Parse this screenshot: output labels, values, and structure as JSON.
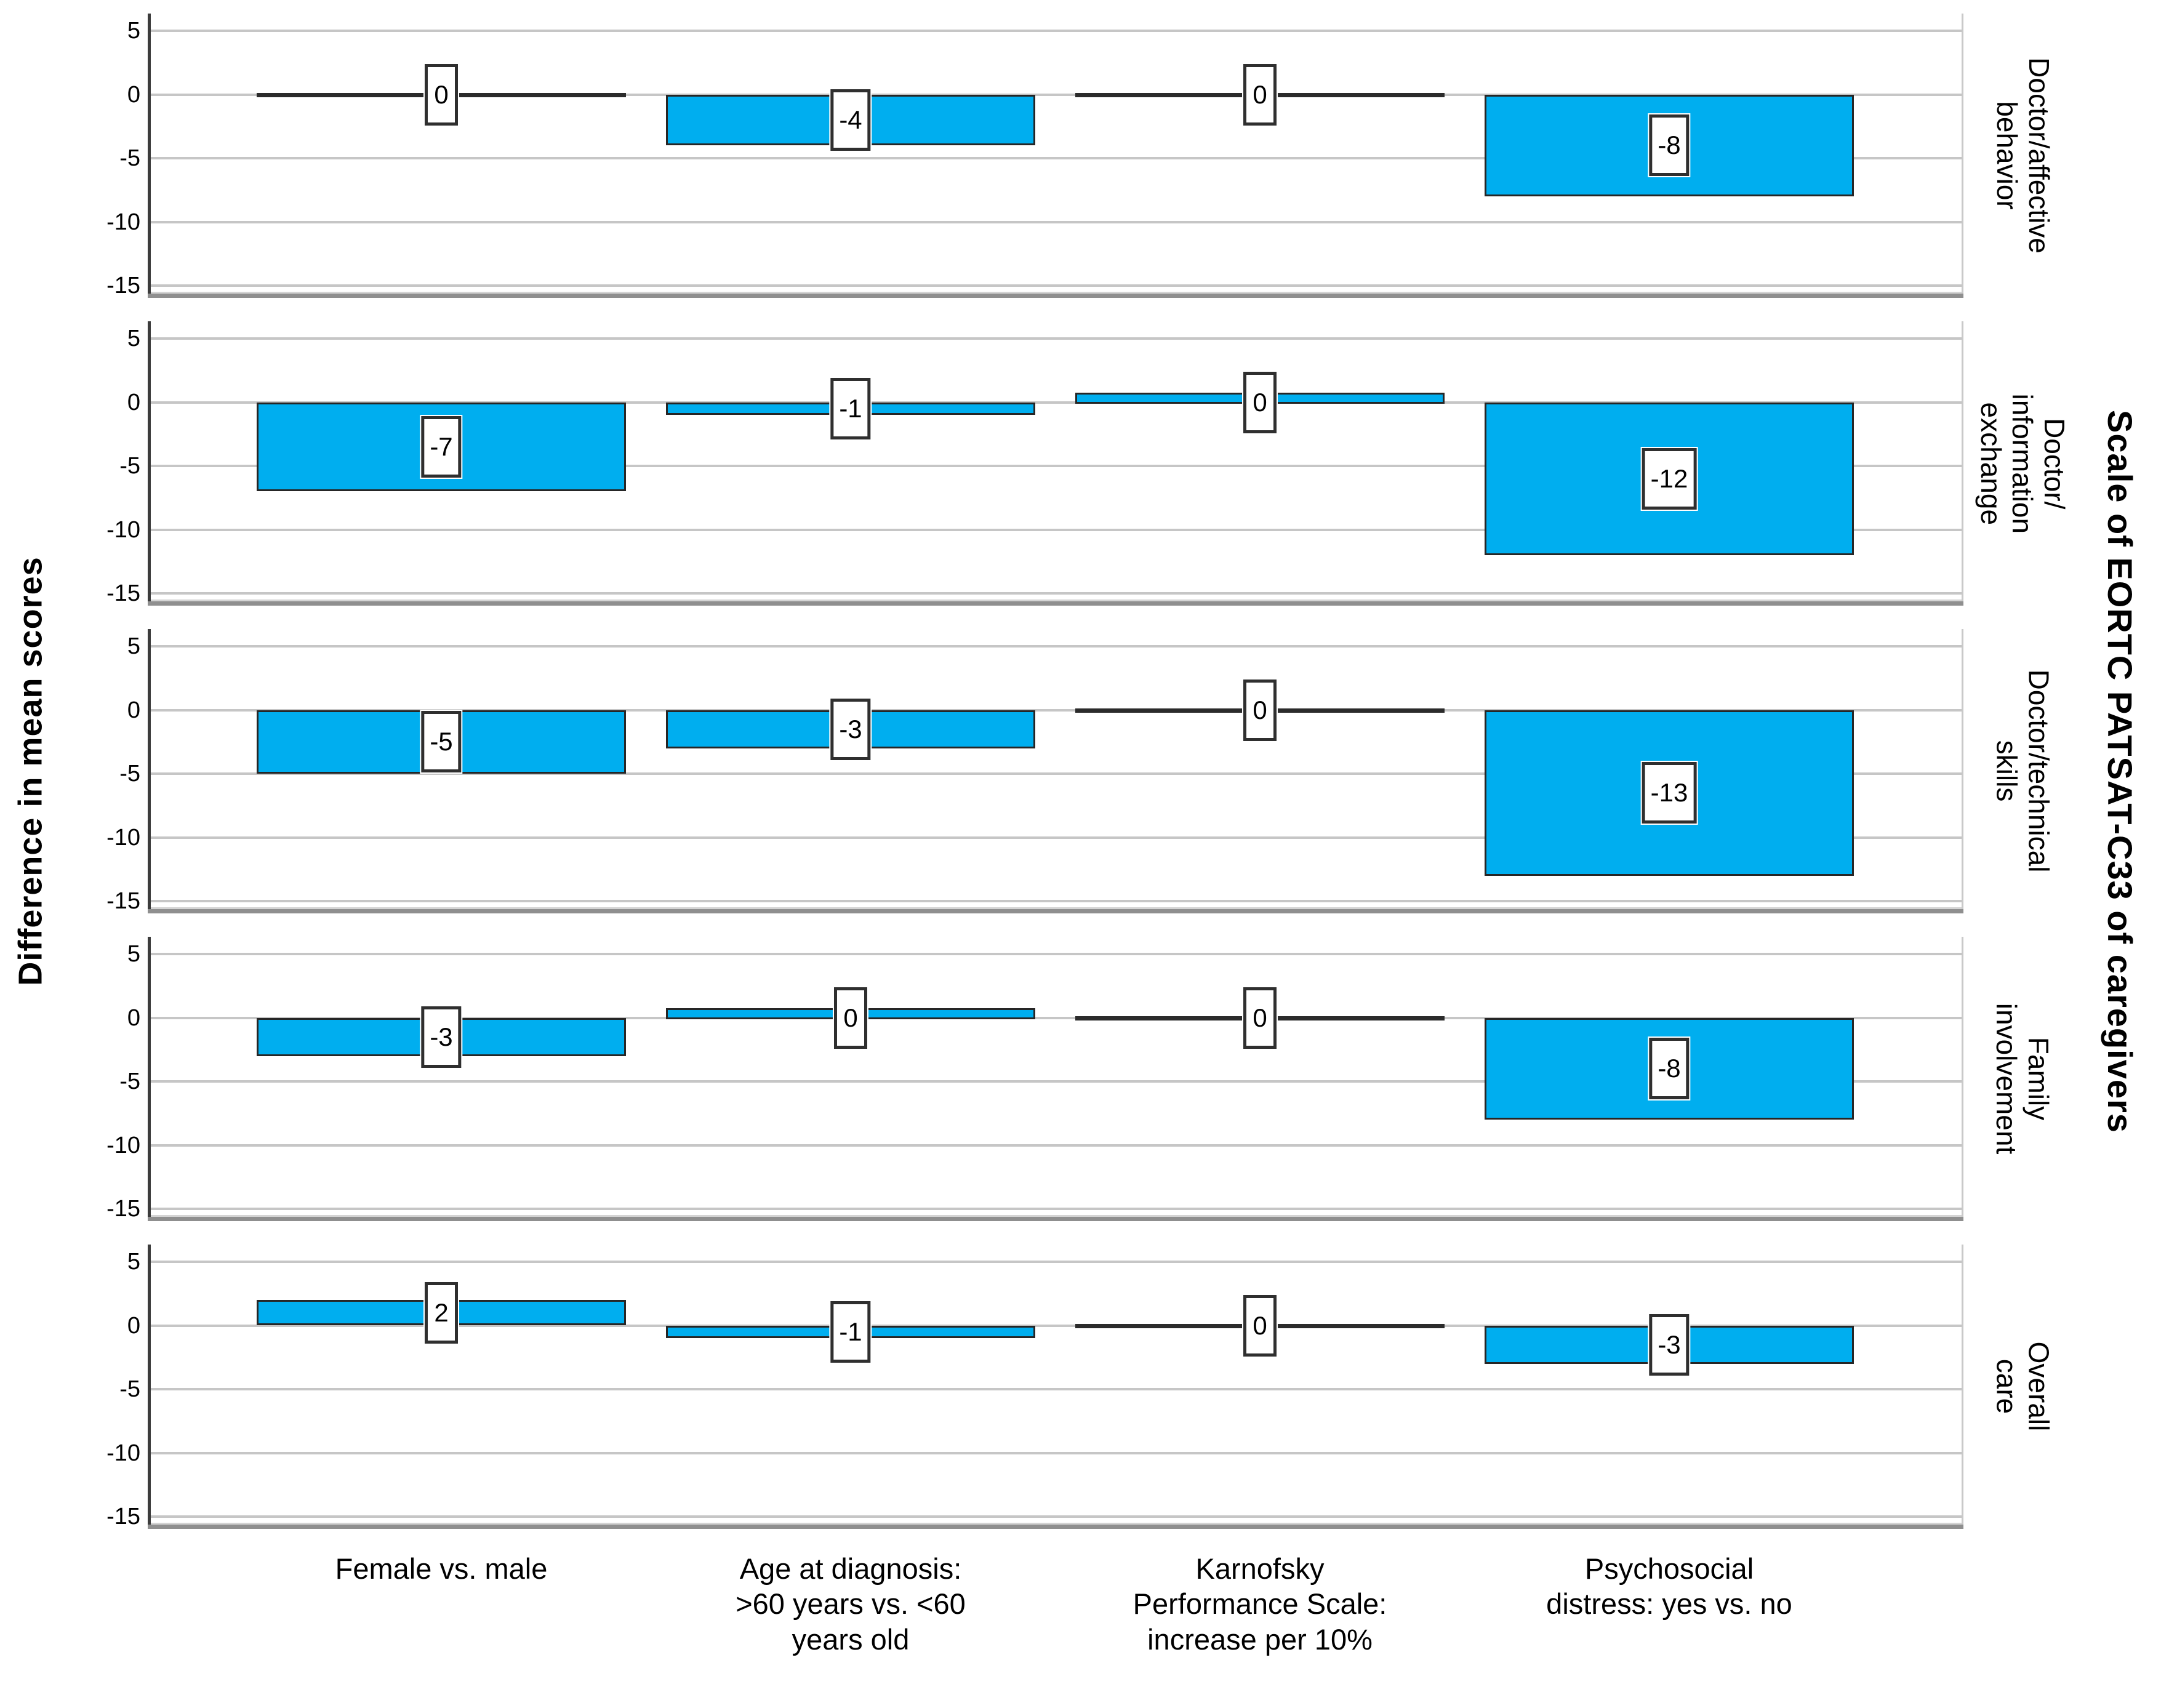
{
  "chart_data": {
    "type": "bar",
    "title_right": "Scale of EORTC PATSAT-C33 of caregivers",
    "ylabel": "Difference in mean scores",
    "bar_color": "#00AEEF",
    "grid": true,
    "y_axis": {
      "ticks": [
        {
          "v": 5,
          "label": "5"
        },
        {
          "v": 0,
          "label": "0"
        },
        {
          "v": -5,
          "label": "-5"
        },
        {
          "v": -10,
          "label": "-10"
        },
        {
          "v": -15,
          "label": "-15"
        }
      ],
      "ylim": [
        6.3,
        -16.3
      ]
    },
    "categories": [
      {
        "label": "Female vs. male",
        "lines": [
          "Female vs. male"
        ]
      },
      {
        "label": "Age at diagnosis: >60 years vs. <60 years old",
        "lines": [
          "Age at diagnosis:",
          ">60 years vs. <60",
          "years old"
        ]
      },
      {
        "label": "Karnofsky Performance Scale: increase per 10%",
        "lines": [
          "Karnofsky",
          "Performance Scale:",
          "increase per 10%"
        ]
      },
      {
        "label": "Psychosocial distress: yes vs. no",
        "lines": [
          "Psychosocial",
          "distress: yes vs. no"
        ]
      }
    ],
    "panels": [
      {
        "scale": "Doctor/affective behavior",
        "label_lines": [
          "Doctor/affective",
          "behavior"
        ],
        "bars": [
          {
            "value": 0,
            "label": "0",
            "zero_style": "line"
          },
          {
            "value": -4,
            "label": "-4"
          },
          {
            "value": 0,
            "label": "0",
            "zero_style": "line"
          },
          {
            "value": -8,
            "label": "-8"
          }
        ]
      },
      {
        "scale": "Doctor/information exchange",
        "label_lines": [
          "Doctor/",
          "information",
          "exchange"
        ],
        "bars": [
          {
            "value": -7,
            "label": "-7"
          },
          {
            "value": -1,
            "label": "-1"
          },
          {
            "value": 0,
            "label": "0",
            "zero_style": "thin-bar"
          },
          {
            "value": -12,
            "label": "-12"
          }
        ]
      },
      {
        "scale": "Doctor/technical skills",
        "label_lines": [
          "Doctor/technical",
          "skills"
        ],
        "bars": [
          {
            "value": -5,
            "label": "-5"
          },
          {
            "value": -3,
            "label": "-3"
          },
          {
            "value": 0,
            "label": "0",
            "zero_style": "line"
          },
          {
            "value": -13,
            "label": "-13"
          }
        ]
      },
      {
        "scale": "Family involvement",
        "label_lines": [
          "Family",
          "involvement"
        ],
        "bars": [
          {
            "value": -3,
            "label": "-3"
          },
          {
            "value": 0,
            "label": "0",
            "zero_style": "thin-bar"
          },
          {
            "value": 0,
            "label": "0",
            "zero_style": "line"
          },
          {
            "value": -8,
            "label": "-8"
          }
        ]
      },
      {
        "scale": "Overall care",
        "label_lines": [
          "Overall care"
        ],
        "bars": [
          {
            "value": 2,
            "label": "2"
          },
          {
            "value": -1,
            "label": "-1"
          },
          {
            "value": 0,
            "label": "0",
            "zero_style": "line"
          },
          {
            "value": -3,
            "label": "-3"
          }
        ]
      }
    ]
  }
}
